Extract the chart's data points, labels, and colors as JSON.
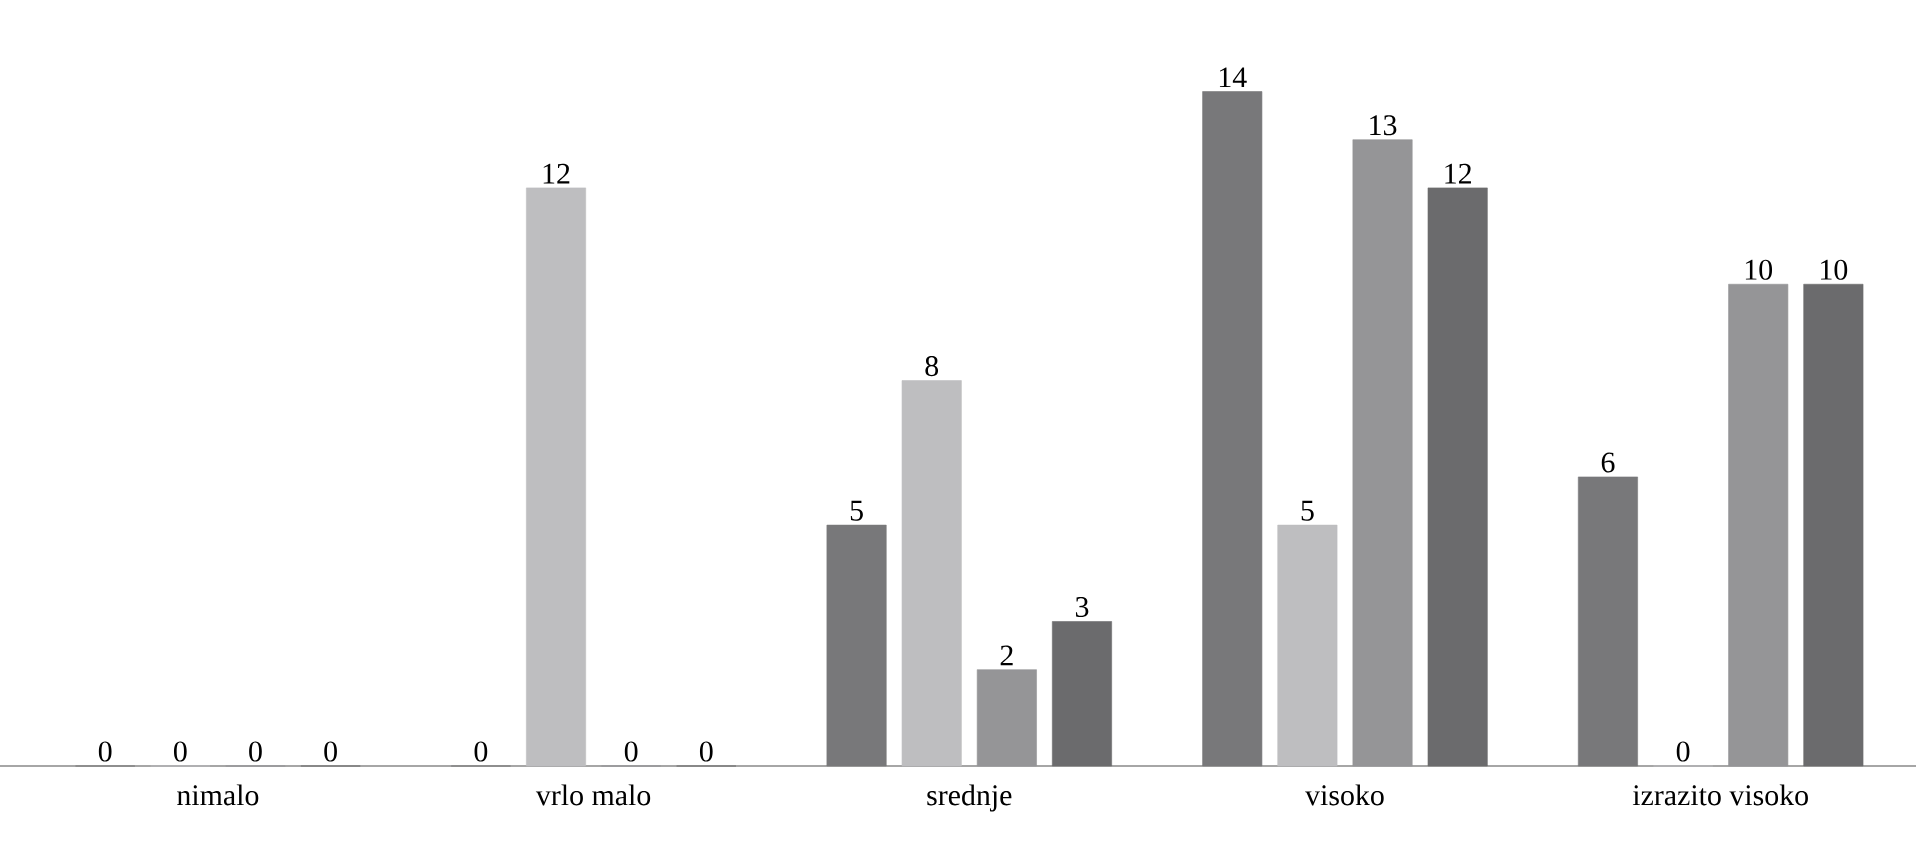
{
  "chart_data": {
    "type": "bar",
    "categories": [
      "nimalo",
      "vrlo malo",
      "srednje",
      "visoko",
      "izrazito visoko"
    ],
    "series": [
      {
        "color": "#78787a",
        "values": [
          0,
          0,
          5,
          14,
          6
        ]
      },
      {
        "color": "#bebec0",
        "values": [
          0,
          12,
          8,
          5,
          0
        ]
      },
      {
        "color": "#959597",
        "values": [
          0,
          0,
          2,
          13,
          10
        ]
      },
      {
        "color": "#6b6b6d",
        "values": [
          0,
          0,
          3,
          12,
          10
        ]
      }
    ],
    "data_labels": true
  }
}
